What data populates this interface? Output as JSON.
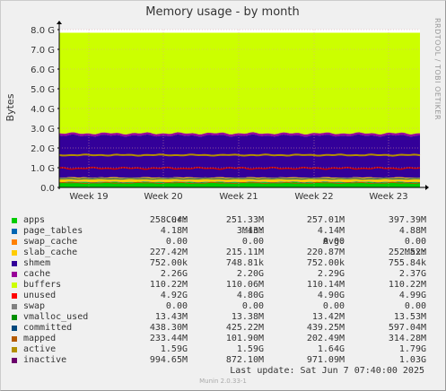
{
  "chart_data": {
    "type": "area",
    "title": "Memory usage - by month",
    "ylabel": "Bytes",
    "side_label": "RRDTOOL / TOBI OETIKER",
    "ylim": [
      0,
      8
    ],
    "yunit": "G",
    "yticks": [
      "0.0",
      "1.0 G",
      "2.0 G",
      "3.0 G",
      "4.0 G",
      "5.0 G",
      "6.0 G",
      "7.0 G",
      "8.0 G"
    ],
    "xticks": [
      "Week 19",
      "Week 20",
      "Week 21",
      "Week 22",
      "Week 23"
    ],
    "stack": {
      "apps_top": 0.26,
      "shmem_top": 1.01,
      "cache_top": 2.63,
      "buffers_top": 2.74,
      "unused_top": 7.84,
      "committed_level": 0.44,
      "inactive_level": 0.97,
      "mapped_level": 0.23,
      "active_level": 1.64
    },
    "columns": [
      "Cur:",
      "Min:",
      "Avg:",
      "Max:"
    ],
    "series": [
      {
        "name": "apps",
        "color": "#00cc00",
        "cur": "258.04M",
        "min": "251.33M",
        "avg": "257.01M",
        "max": "397.39M"
      },
      {
        "name": "page_tables",
        "color": "#0066b3",
        "cur": "4.18M",
        "min": "3.43M",
        "avg": "4.14M",
        "max": "4.88M"
      },
      {
        "name": "swap_cache",
        "color": "#ff8000",
        "cur": "0.00",
        "min": "0.00",
        "avg": "0.00",
        "max": "0.00"
      },
      {
        "name": "slab_cache",
        "color": "#ffcc00",
        "cur": "227.42M",
        "min": "215.11M",
        "avg": "220.87M",
        "max": "252.52M"
      },
      {
        "name": "shmem",
        "color": "#330099",
        "cur": "752.00k",
        "min": "748.81k",
        "avg": "752.00k",
        "max": "755.84k"
      },
      {
        "name": "cache",
        "color": "#990099",
        "cur": "2.26G",
        "min": "2.20G",
        "avg": "2.29G",
        "max": "2.37G"
      },
      {
        "name": "buffers",
        "color": "#ccff00",
        "cur": "110.22M",
        "min": "110.06M",
        "avg": "110.14M",
        "max": "110.22M"
      },
      {
        "name": "unused",
        "color": "#ff0000",
        "cur": "4.92G",
        "min": "4.80G",
        "avg": "4.90G",
        "max": "4.99G"
      },
      {
        "name": "swap",
        "color": "#808080",
        "cur": "0.00",
        "min": "0.00",
        "avg": "0.00",
        "max": "0.00"
      },
      {
        "name": "vmalloc_used",
        "color": "#008f00",
        "cur": "13.43M",
        "min": "13.38M",
        "avg": "13.42M",
        "max": "13.53M"
      },
      {
        "name": "committed",
        "color": "#00487d",
        "cur": "438.30M",
        "min": "425.22M",
        "avg": "439.25M",
        "max": "597.04M"
      },
      {
        "name": "mapped",
        "color": "#b35a00",
        "cur": "233.44M",
        "min": "101.90M",
        "avg": "202.49M",
        "max": "314.28M"
      },
      {
        "name": "active",
        "color": "#b38f00",
        "cur": "1.59G",
        "min": "1.59G",
        "avg": "1.64G",
        "max": "1.79G"
      },
      {
        "name": "inactive",
        "color": "#6b006b",
        "cur": "994.65M",
        "min": "872.10M",
        "avg": "971.09M",
        "max": "1.03G"
      }
    ],
    "colors": {
      "unused_fill": "#ccff00",
      "cache_fill": "#330099",
      "buffers_fill": "#990099",
      "slab_fill": "#ffcc00",
      "apps_fill": "#00cc00",
      "page_tables_fill": "#0066b3",
      "committed_line": "#00487d",
      "inactive_line": "#cc0000",
      "active_line": "#b38f00",
      "mapped_line": "#b35a00"
    },
    "last_update": "Last update:  Sat Jun  7 07:40:00 2025",
    "footer": "Munin 2.0.33-1"
  }
}
